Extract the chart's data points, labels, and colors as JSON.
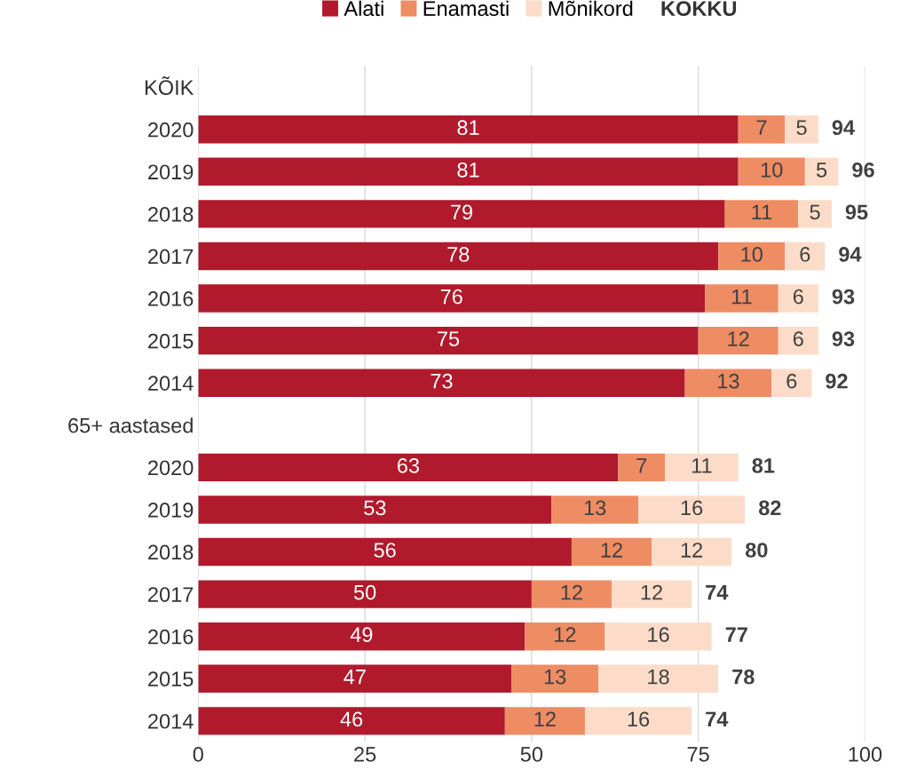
{
  "chart_data": {
    "type": "bar",
    "orientation": "horizontal",
    "stacked": true,
    "categories": [
      "KÕIK",
      "2020",
      "2019",
      "2018",
      "2017",
      "2016",
      "2015",
      "2014",
      "65+ aastased",
      "2020",
      "2019",
      "2018",
      "2017",
      "2016",
      "2015",
      "2014"
    ],
    "series": [
      {
        "name": "Alati",
        "color": "#b01a2c",
        "values": [
          null,
          81,
          81,
          79,
          78,
          76,
          75,
          73,
          null,
          63,
          53,
          56,
          50,
          49,
          47,
          46
        ]
      },
      {
        "name": "Enamasti",
        "color": "#ee8c64",
        "values": [
          null,
          7,
          10,
          11,
          10,
          11,
          12,
          13,
          null,
          7,
          13,
          12,
          12,
          12,
          13,
          12
        ]
      },
      {
        "name": "Mõnikord",
        "color": "#fcdcc8",
        "values": [
          null,
          5,
          5,
          5,
          6,
          6,
          6,
          6,
          null,
          11,
          16,
          12,
          12,
          16,
          18,
          16
        ]
      }
    ],
    "totals": [
      null,
      "94",
      "96",
      "95",
      "94",
      "93",
      "93",
      "92",
      null,
      "81",
      "82",
      "80",
      "74",
      "77",
      "78",
      "74"
    ],
    "annotations": [
      "KOKKU"
    ],
    "data_labels": true,
    "xlim": [
      0,
      100
    ],
    "xticks": [
      0,
      25,
      50,
      75,
      100
    ],
    "grid": "x",
    "legend": "top"
  }
}
